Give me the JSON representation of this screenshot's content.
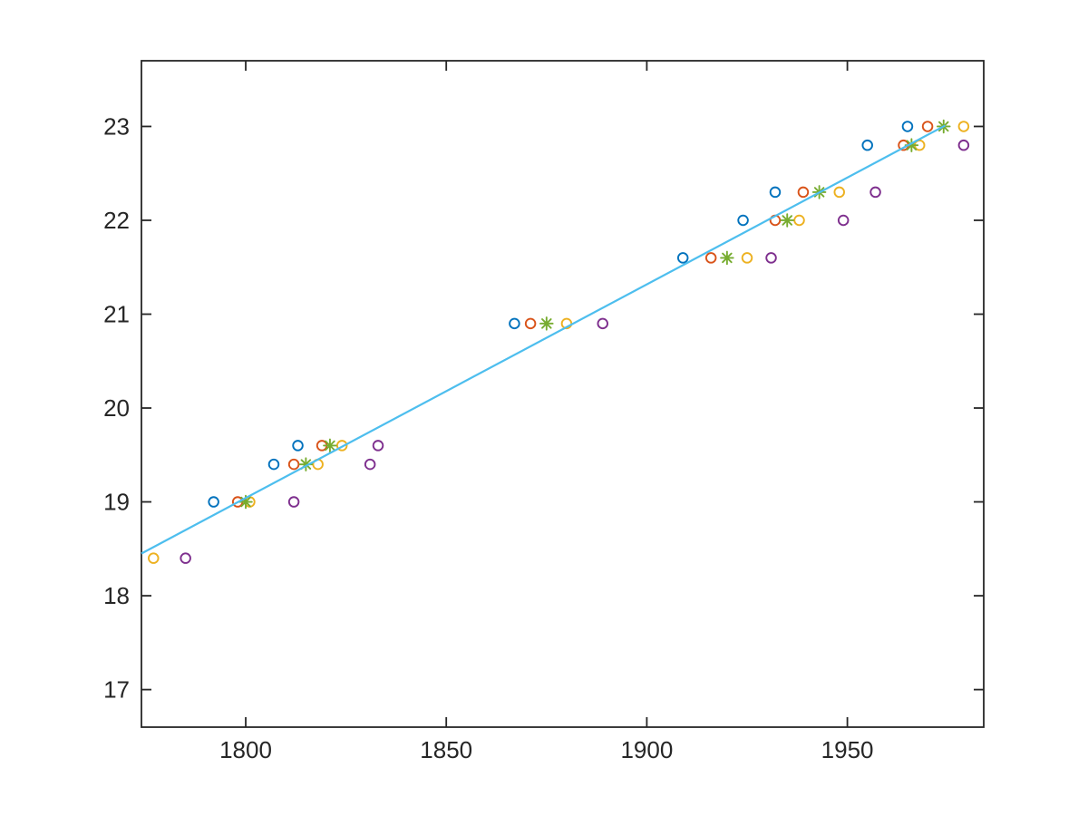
{
  "window": {
    "background": "#ffffff"
  },
  "styles": {
    "axis_color": "#262626",
    "tick_label_color": "#262626",
    "palette": {
      "blue": "#0072BD",
      "orange": "#D95319",
      "yellow": "#EDB120",
      "purple": "#7E2F8E",
      "green": "#77AC30",
      "cyan": "#4DBEEE"
    }
  },
  "chart_data": {
    "type": "scatter",
    "title": "",
    "xlabel": "",
    "ylabel": "",
    "xlim": [
      1774,
      1984
    ],
    "ylim": [
      16.6,
      23.7
    ],
    "xticks": [
      1800,
      1850,
      1900,
      1950
    ],
    "yticks": [
      17,
      18,
      19,
      20,
      21,
      22,
      23
    ],
    "grid": false,
    "legend": false,
    "box": true,
    "tick_direction": "in",
    "series": [
      {
        "name": "series-1-circles",
        "marker": "circle",
        "color": "#0072BD",
        "points": [
          [
            1792,
            19.0
          ],
          [
            1807,
            19.4
          ],
          [
            1813,
            19.6
          ],
          [
            1867,
            20.9
          ],
          [
            1909,
            21.6
          ],
          [
            1924,
            22.0
          ],
          [
            1932,
            22.3
          ],
          [
            1955,
            22.8
          ],
          [
            1965,
            23.0
          ]
        ]
      },
      {
        "name": "series-2-circles",
        "marker": "circle",
        "color": "#D95319",
        "points": [
          [
            1798,
            19.0
          ],
          [
            1812,
            19.4
          ],
          [
            1819,
            19.6
          ],
          [
            1871,
            20.9
          ],
          [
            1916,
            21.6
          ],
          [
            1932,
            22.0
          ],
          [
            1939,
            22.3
          ],
          [
            1964,
            22.8
          ],
          [
            1970,
            23.0
          ]
        ]
      },
      {
        "name": "series-3-circles",
        "marker": "circle",
        "color": "#EDB120",
        "points": [
          [
            1777,
            18.4
          ],
          [
            1801,
            19.0
          ],
          [
            1818,
            19.4
          ],
          [
            1824,
            19.6
          ],
          [
            1880,
            20.9
          ],
          [
            1925,
            21.6
          ],
          [
            1938,
            22.0
          ],
          [
            1948,
            22.3
          ],
          [
            1968,
            22.8
          ],
          [
            1979,
            23.0
          ]
        ]
      },
      {
        "name": "series-4-circles",
        "marker": "circle",
        "color": "#7E2F8E",
        "points": [
          [
            1785,
            18.4
          ],
          [
            1812,
            19.0
          ],
          [
            1831,
            19.4
          ],
          [
            1833,
            19.6
          ],
          [
            1889,
            20.9
          ],
          [
            1931,
            21.6
          ],
          [
            1949,
            22.0
          ],
          [
            1957,
            22.3
          ],
          [
            1979,
            22.8
          ]
        ]
      },
      {
        "name": "series-5-asterisks",
        "marker": "asterisk",
        "color": "#77AC30",
        "points": [
          [
            1800,
            19.0
          ],
          [
            1815,
            19.4
          ],
          [
            1821,
            19.6
          ],
          [
            1875,
            20.9
          ],
          [
            1920,
            21.6
          ],
          [
            1935,
            22.0
          ],
          [
            1943,
            22.3
          ],
          [
            1966,
            22.8
          ],
          [
            1974,
            23.0
          ]
        ]
      }
    ],
    "fit_line": {
      "name": "linear-fit-line",
      "color": "#4DBEEE",
      "points": [
        [
          1774,
          18.45
        ],
        [
          1974.4,
          23.01
        ]
      ]
    }
  }
}
